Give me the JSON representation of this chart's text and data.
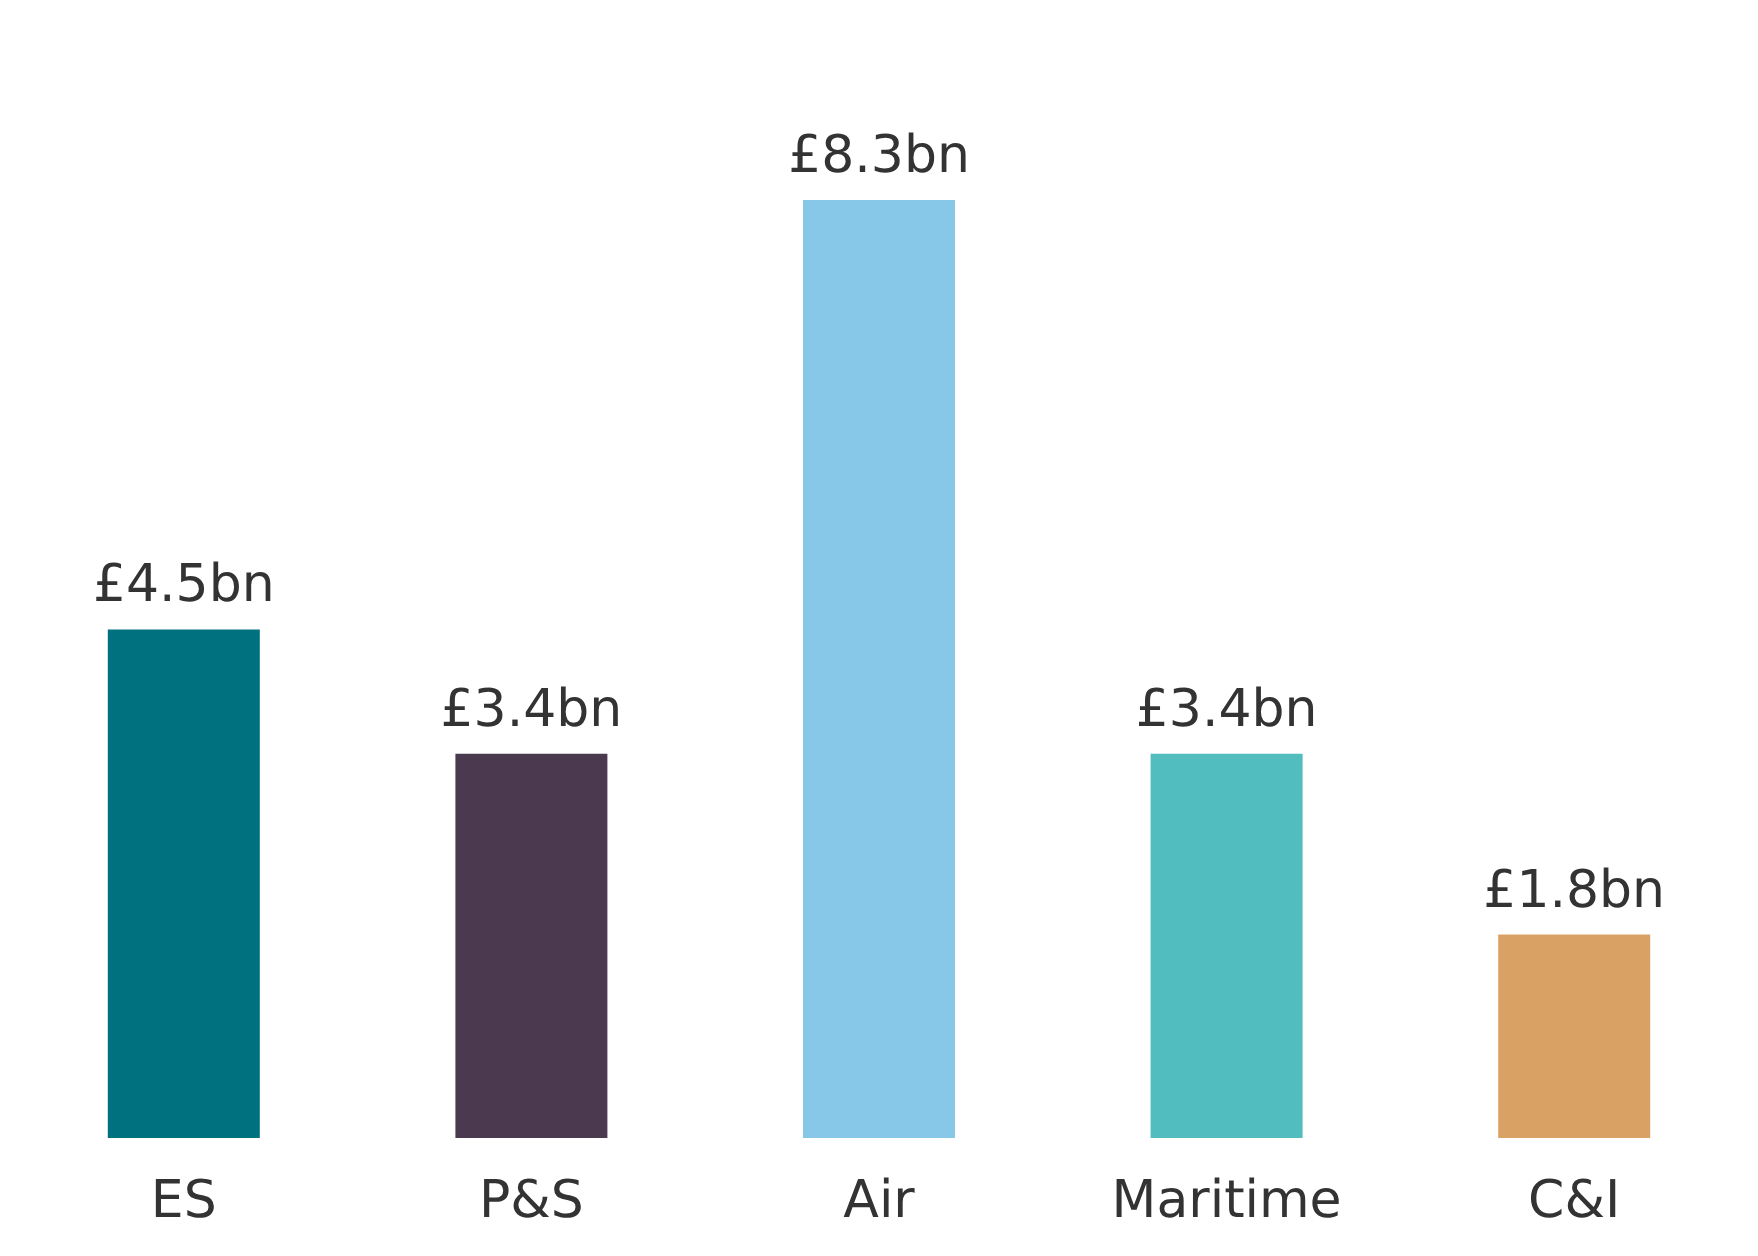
{
  "chart_data": {
    "type": "bar",
    "categories": [
      "ES",
      "P&S",
      "Air",
      "Maritime",
      "C&I"
    ],
    "values": [
      4.5,
      3.4,
      8.3,
      3.4,
      1.8
    ],
    "value_labels": [
      "£4.5bn",
      "£3.4bn",
      "£8.3bn",
      "£3.4bn",
      "£1.8bn"
    ],
    "colors": [
      "#00727f",
      "#4b3a4f",
      "#87c8e8",
      "#52bdbe",
      "#d9a264"
    ]
  }
}
